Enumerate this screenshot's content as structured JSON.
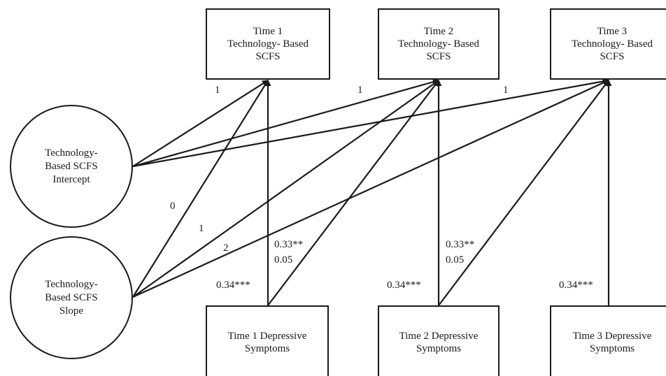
{
  "time_boxes": [
    {
      "line1": "Time 1",
      "line2": "Technology- Based",
      "line3": "SCFS"
    },
    {
      "line1": "Time 2",
      "line2": "Technology- Based",
      "line3": "SCFS"
    },
    {
      "line1": "Time 3",
      "line2": "Technology- Based",
      "line3": "SCFS"
    }
  ],
  "depression_boxes": [
    {
      "line1": "Time 1 Depressive",
      "line2": "Symptoms"
    },
    {
      "line1": "Time 2 Depressive",
      "line2": "Symptoms"
    },
    {
      "line1": "Time 3 Depressive",
      "line2": "Symptoms"
    }
  ],
  "intercept": {
    "line1": "Technology-",
    "line2": "Based SCFS",
    "line3": "Intercept"
  },
  "slope": {
    "line1": "Technology-",
    "line2": "Based SCFS",
    "line3": "Slope"
  },
  "loadings": {
    "intercept_t1": "1",
    "intercept_t2": "1",
    "intercept_t3": "1",
    "slope_t1": "0",
    "slope_t2": "1",
    "slope_t3": "2"
  },
  "paths": {
    "t1_cross_sig": "0.33**",
    "t1_cross_ns": "0.05",
    "t2_cross_sig": "0.33**",
    "t2_cross_ns": "0.05",
    "t1_concurrent": "0.34***",
    "t2_concurrent": "0.34***",
    "t3_concurrent": "0.34***"
  },
  "colors": {
    "stroke": "#1a1a1a",
    "background": "#ffffff"
  }
}
